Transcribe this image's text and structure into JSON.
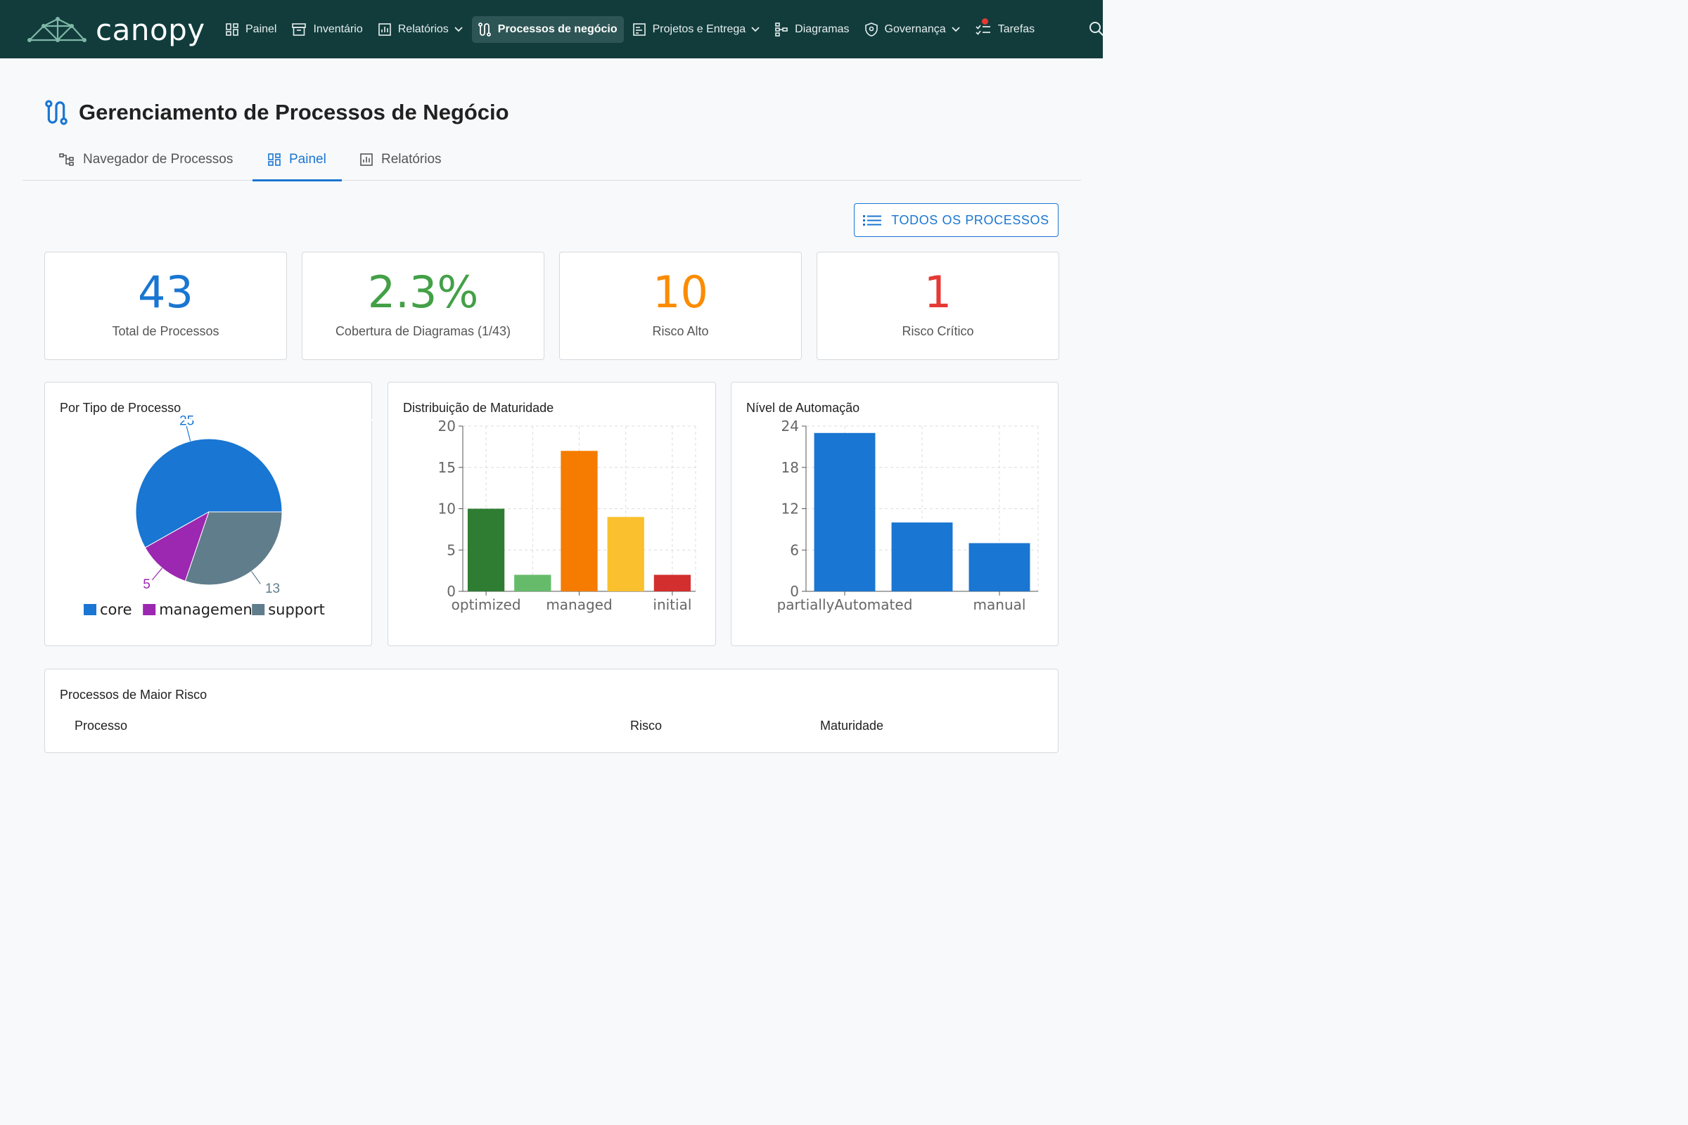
{
  "brand": {
    "name": "canopy"
  },
  "nav": {
    "items": [
      {
        "label": "Painel",
        "icon": "dashboard-icon"
      },
      {
        "label": "Inventário",
        "icon": "archive-icon"
      },
      {
        "label": "Relatórios",
        "icon": "report-icon",
        "dropdown": true
      },
      {
        "label": "Processos de negócio",
        "icon": "process-icon",
        "active": true
      },
      {
        "label": "Projetos e Entrega",
        "icon": "project-icon",
        "dropdown": true
      },
      {
        "label": "Diagramas",
        "icon": "diagram-icon"
      },
      {
        "label": "Governança",
        "icon": "shield-icon",
        "dropdown": true
      },
      {
        "label": "Tarefas",
        "icon": "tasks-icon",
        "notification": true
      }
    ],
    "search_icon": "search-icon"
  },
  "page": {
    "title": "Gerenciamento de Processos de Negócio",
    "tabs": [
      {
        "label": "Navegador de Processos",
        "icon": "tree-icon"
      },
      {
        "label": "Painel",
        "icon": "dashboard-icon",
        "active": true
      },
      {
        "label": "Relatórios",
        "icon": "report-icon"
      }
    ],
    "all_button": "TODOS OS PROCESSOS"
  },
  "stats": [
    {
      "value": "43",
      "label": "Total de Processos",
      "color": "#1976d2"
    },
    {
      "value": "2.3%",
      "label": "Cobertura de Diagramas (1/43)",
      "color": "#43a047"
    },
    {
      "value": "10",
      "label": "Risco Alto",
      "color": "#fb8c00"
    },
    {
      "value": "1",
      "label": "Risco Crítico",
      "color": "#e53935"
    }
  ],
  "chart_data": [
    {
      "type": "pie",
      "title": "Por Tipo de Processo",
      "categories": [
        "core",
        "management",
        "support"
      ],
      "values": [
        25,
        5,
        13
      ],
      "visible_labels": [
        "25",
        "5",
        "13"
      ],
      "colors": [
        "#1976d2",
        "#9c27b0",
        "#607d8b"
      ],
      "legend": "bottom"
    },
    {
      "type": "bar",
      "title": "Distribuição de Maturidade",
      "categories": [
        "optimized",
        "",
        "managed",
        "",
        "initial"
      ],
      "values": [
        10,
        2,
        17,
        9,
        2
      ],
      "colors": [
        "#2e7d32",
        "#66bb6a",
        "#f57c00",
        "#fbc02d",
        "#d32f2f"
      ],
      "yticks": [
        "0",
        "5",
        "10",
        "15",
        "20"
      ],
      "ylim": [
        0,
        20
      ],
      "grid": true
    },
    {
      "type": "bar",
      "title": "Nível de Automação",
      "categories": [
        "partiallyAutomated",
        "",
        "manual"
      ],
      "values": [
        23,
        10,
        7
      ],
      "colors": [
        "#1976d2",
        "#1976d2",
        "#1976d2"
      ],
      "yticks": [
        "0",
        "6",
        "12",
        "18",
        "24"
      ],
      "ylim": [
        0,
        24
      ],
      "grid": true
    }
  ],
  "risk_table": {
    "title": "Processos de Maior Risco",
    "columns": [
      "Processo",
      "Risco",
      "Maturidade"
    ]
  }
}
